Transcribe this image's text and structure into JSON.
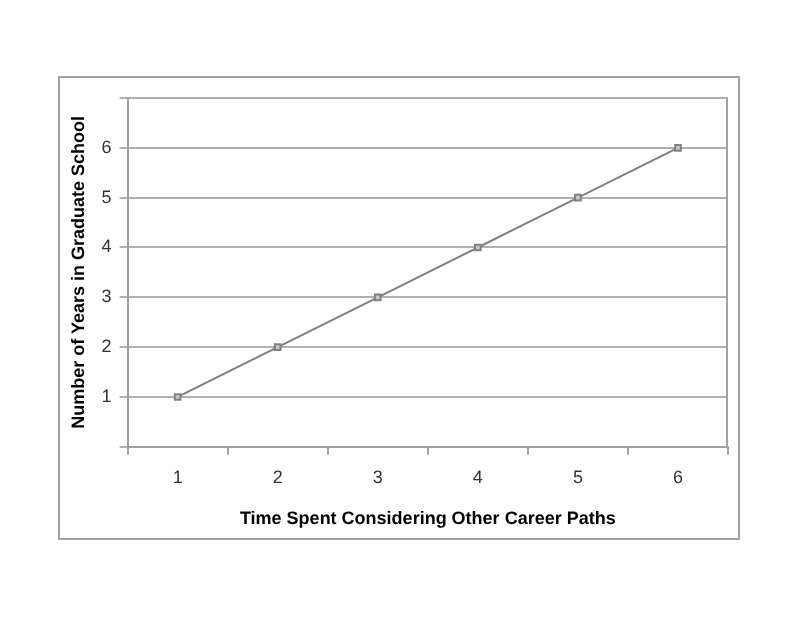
{
  "chart_data": {
    "type": "line",
    "xlabel": "Time Spent Considering Other Career Paths",
    "ylabel": "Number of Years in Graduate School",
    "categories": [
      "1",
      "2",
      "3",
      "4",
      "5",
      "6"
    ],
    "series": [
      {
        "color": "#808080",
        "values": [
          1,
          2,
          3,
          4,
          5,
          6
        ]
      }
    ],
    "ylim": [
      0,
      7
    ],
    "yticks": [
      {
        "value": 0,
        "label": null
      },
      1,
      2,
      3,
      4,
      5,
      6,
      {
        "value": 7,
        "label": null
      }
    ],
    "grid": "y",
    "legend": false,
    "marker": "square",
    "line_style": "solid"
  }
}
